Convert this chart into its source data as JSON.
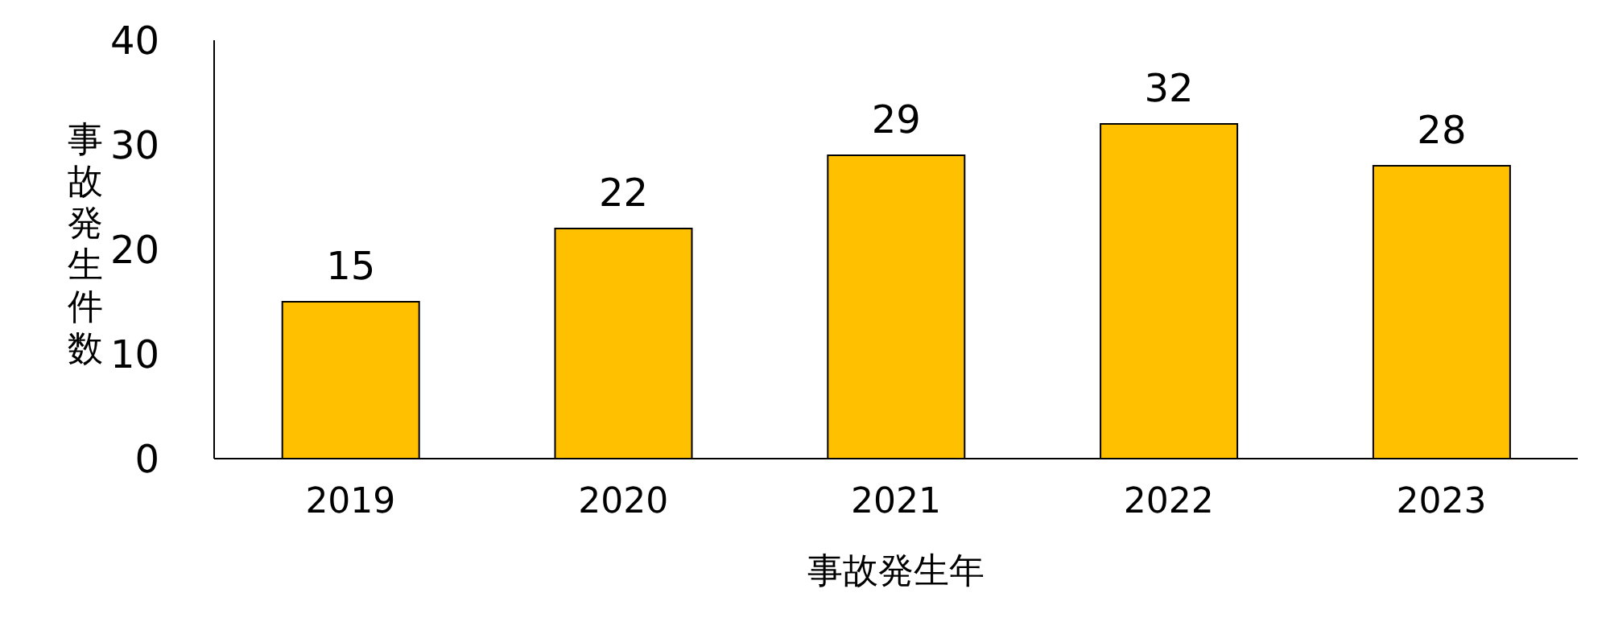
{
  "chart_data": {
    "type": "bar",
    "xlabel": "事故発生年",
    "ylabel": "事故発生件数",
    "categories": [
      "2019",
      "2020",
      "2021",
      "2022",
      "2023"
    ],
    "values": [
      15,
      22,
      29,
      32,
      28
    ],
    "color": "#ffc000",
    "ylim": [
      0,
      40
    ],
    "yticks": [
      0,
      10,
      20,
      30,
      40
    ],
    "grid": false,
    "legend": false,
    "data_labels": true
  }
}
